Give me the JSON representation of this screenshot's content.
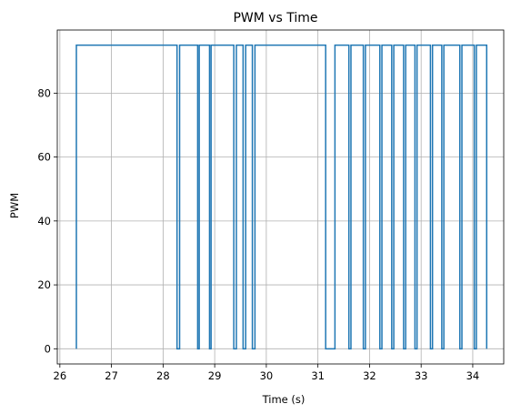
{
  "chart_data": {
    "type": "line",
    "title": "PWM vs Time",
    "xlabel": "Time (s)",
    "ylabel": "PWM",
    "xlim": [
      25.95,
      34.6
    ],
    "ylim": [
      -4.75,
      99.75
    ],
    "xticks": [
      26,
      27,
      28,
      29,
      30,
      31,
      32,
      33,
      34
    ],
    "yticks": [
      0,
      20,
      40,
      60,
      80
    ],
    "grid": true,
    "legend": "none",
    "series": [
      {
        "color": "#1f77b4",
        "step": true,
        "x": [
          26.32,
          26.32,
          28.27,
          28.27,
          28.32,
          28.32,
          28.67,
          28.67,
          28.7,
          28.7,
          28.9,
          28.9,
          28.93,
          28.93,
          29.37,
          29.37,
          29.42,
          29.42,
          29.55,
          29.55,
          29.6,
          29.6,
          29.73,
          29.73,
          29.78,
          29.78,
          31.15,
          31.15,
          31.33,
          31.33,
          31.6,
          31.6,
          31.64,
          31.64,
          31.88,
          31.88,
          31.92,
          31.92,
          32.2,
          32.2,
          32.24,
          32.24,
          32.43,
          32.43,
          32.47,
          32.47,
          32.66,
          32.66,
          32.7,
          32.7,
          32.88,
          32.88,
          32.92,
          32.92,
          33.18,
          33.18,
          33.22,
          33.22,
          33.4,
          33.4,
          33.44,
          33.44,
          33.75,
          33.75,
          33.79,
          33.79,
          34.03,
          34.03,
          34.07,
          34.07,
          34.27,
          34.27
        ],
        "y": [
          0,
          95,
          95,
          0,
          0,
          95,
          95,
          0,
          0,
          95,
          95,
          0,
          0,
          95,
          95,
          0,
          0,
          95,
          95,
          0,
          0,
          95,
          95,
          0,
          0,
          95,
          95,
          0,
          0,
          95,
          95,
          0,
          0,
          95,
          95,
          0,
          0,
          95,
          95,
          0,
          0,
          95,
          95,
          0,
          0,
          95,
          95,
          0,
          0,
          95,
          95,
          0,
          0,
          95,
          95,
          0,
          0,
          95,
          95,
          0,
          0,
          95,
          95,
          0,
          0,
          95,
          95,
          0,
          0,
          95,
          95,
          0
        ]
      }
    ]
  }
}
